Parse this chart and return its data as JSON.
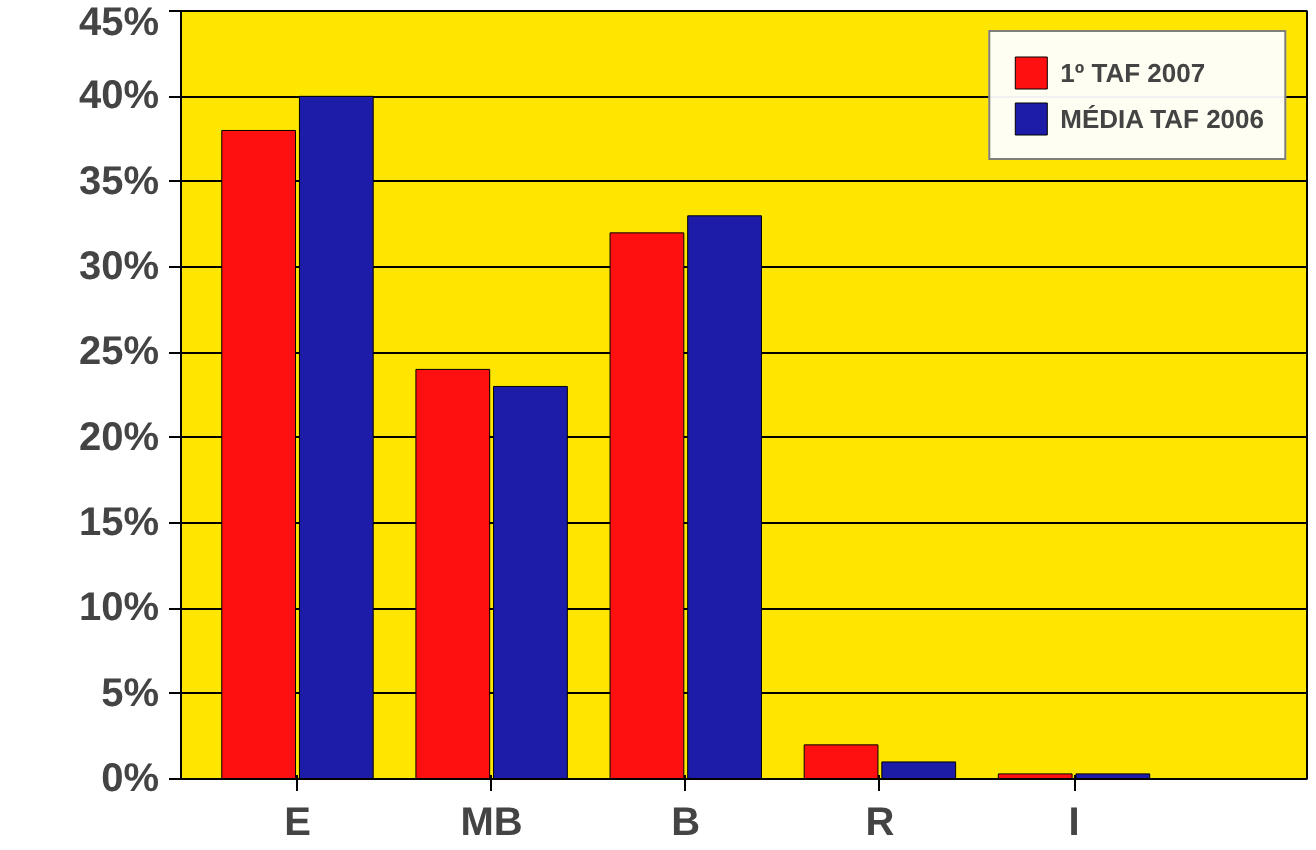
{
  "chart_data": {
    "type": "bar",
    "categories": [
      "E",
      "MB",
      "B",
      "R",
      "I"
    ],
    "series": [
      {
        "name": "1º TAF 2007",
        "color": "#ff1010",
        "values": [
          38,
          24,
          32,
          2,
          0.3
        ]
      },
      {
        "name": "MÉDIA TAF 2006",
        "color": "#1c1ca8",
        "values": [
          40,
          23,
          33,
          1,
          0.3
        ]
      }
    ],
    "ylim": [
      0,
      45
    ],
    "yticks": [
      {
        "value": 0,
        "label": "0%"
      },
      {
        "value": 5,
        "label": "5%"
      },
      {
        "value": 10,
        "label": "10%"
      },
      {
        "value": 15,
        "label": "15%"
      },
      {
        "value": 20,
        "label": "20%"
      },
      {
        "value": 25,
        "label": "25%"
      },
      {
        "value": 30,
        "label": "30%"
      },
      {
        "value": 35,
        "label": "35%"
      },
      {
        "value": 40,
        "label": "40%"
      },
      {
        "value": 45,
        "label": "45%"
      }
    ],
    "grid": "y",
    "legend": "top right"
  }
}
